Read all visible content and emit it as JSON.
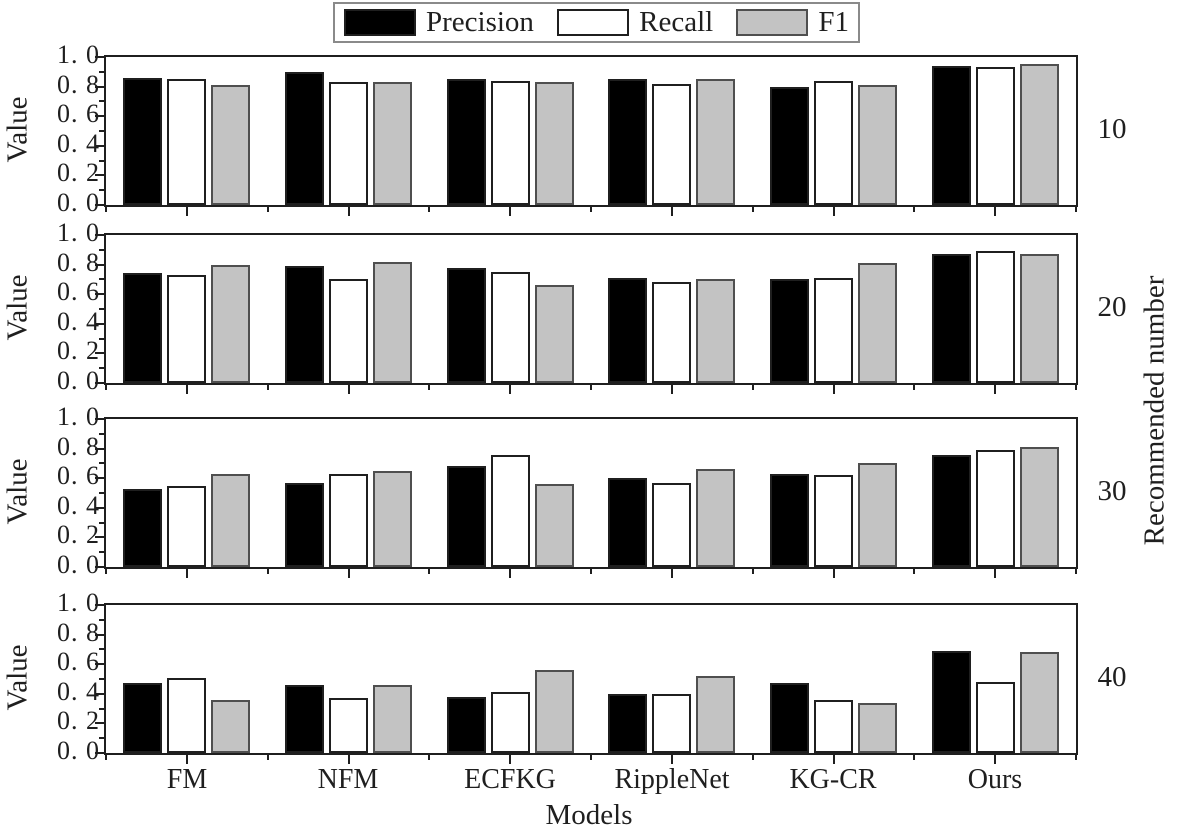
{
  "figure": {
    "legend": {
      "items": [
        {
          "label": "Precision",
          "color": "#000000",
          "edge": "#1f1f1f"
        },
        {
          "label": "Recall",
          "color": "#ffffff",
          "edge": "#1f1f1f"
        },
        {
          "label": "F1",
          "color": "#c3c3c3",
          "edge": "#4f4f4f"
        }
      ]
    },
    "y_axis_title": "Value",
    "x_axis_title": "Models",
    "right_axis_title": "Recommended number",
    "y_ticks": [
      {
        "value": 1.0,
        "label": "1. 0"
      },
      {
        "value": 0.8,
        "label": "0. 8"
      },
      {
        "value": 0.6,
        "label": "0. 6"
      },
      {
        "value": 0.4,
        "label": "0. 4"
      },
      {
        "value": 0.2,
        "label": "0. 2"
      },
      {
        "value": 0.0,
        "label": "0. 0"
      }
    ],
    "axis_color": "#1f1f1f"
  },
  "chart_data": [
    {
      "type": "bar",
      "panel_label": "10",
      "categories": [
        "FM",
        "NFM",
        "ECFKG",
        "RippleNet",
        "KG-CR",
        "Ours"
      ],
      "series": [
        {
          "name": "Precision",
          "values": [
            0.86,
            0.9,
            0.85,
            0.85,
            0.8,
            0.94
          ]
        },
        {
          "name": "Recall",
          "values": [
            0.85,
            0.83,
            0.84,
            0.82,
            0.84,
            0.93
          ]
        },
        {
          "name": "F1",
          "values": [
            0.81,
            0.83,
            0.83,
            0.85,
            0.81,
            0.95
          ]
        }
      ],
      "xlabel": "Models",
      "ylabel": "Value",
      "ylim": [
        0.0,
        1.0
      ],
      "grid": false,
      "legend_position": "top-center"
    },
    {
      "type": "bar",
      "panel_label": "20",
      "categories": [
        "FM",
        "NFM",
        "ECFKG",
        "RippleNet",
        "KG-CR",
        "Ours"
      ],
      "series": [
        {
          "name": "Precision",
          "values": [
            0.74,
            0.79,
            0.78,
            0.71,
            0.7,
            0.87
          ]
        },
        {
          "name": "Recall",
          "values": [
            0.73,
            0.7,
            0.75,
            0.68,
            0.71,
            0.89
          ]
        },
        {
          "name": "F1",
          "values": [
            0.8,
            0.82,
            0.66,
            0.7,
            0.81,
            0.87
          ]
        }
      ],
      "xlabel": "Models",
      "ylabel": "Value",
      "ylim": [
        0.0,
        1.0
      ],
      "grid": false,
      "legend_position": "top-center"
    },
    {
      "type": "bar",
      "panel_label": "30",
      "categories": [
        "FM",
        "NFM",
        "ECFKG",
        "RippleNet",
        "KG-CR",
        "Ours"
      ],
      "series": [
        {
          "name": "Precision",
          "values": [
            0.53,
            0.57,
            0.68,
            0.6,
            0.63,
            0.76
          ]
        },
        {
          "name": "Recall",
          "values": [
            0.55,
            0.63,
            0.76,
            0.57,
            0.62,
            0.79
          ]
        },
        {
          "name": "F1",
          "values": [
            0.63,
            0.65,
            0.56,
            0.66,
            0.7,
            0.81
          ]
        }
      ],
      "xlabel": "Models",
      "ylabel": "Value",
      "ylim": [
        0.0,
        1.0
      ],
      "grid": false,
      "legend_position": "top-center"
    },
    {
      "type": "bar",
      "panel_label": "40",
      "categories": [
        "FM",
        "NFM",
        "ECFKG",
        "RippleNet",
        "KG-CR",
        "Ours"
      ],
      "series": [
        {
          "name": "Precision",
          "values": [
            0.47,
            0.46,
            0.38,
            0.4,
            0.47,
            0.69
          ]
        },
        {
          "name": "Recall",
          "values": [
            0.51,
            0.37,
            0.41,
            0.4,
            0.36,
            0.48
          ]
        },
        {
          "name": "F1",
          "values": [
            0.36,
            0.46,
            0.56,
            0.52,
            0.34,
            0.68
          ]
        }
      ],
      "xlabel": "Models",
      "ylabel": "Value",
      "ylim": [
        0.0,
        1.0
      ],
      "grid": false,
      "legend_position": "top-center"
    }
  ]
}
